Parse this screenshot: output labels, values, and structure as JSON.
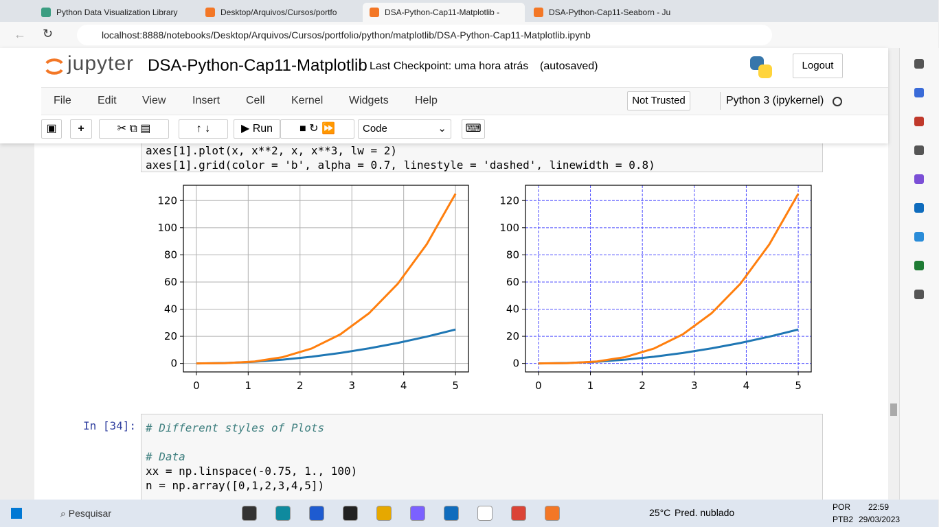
{
  "browser": {
    "tabs": [
      "Python Data Visualization Library",
      "Desktop/Arquivos/Cursos/portfo",
      "DSA-Python-Cap11-Matplotlib -",
      "DSA-Python-Cap11-Seaborn - Ju"
    ],
    "url": "localhost:8888/notebooks/Desktop/Arquivos/Cursos/portfolio/python/matplotlib/DSA-Python-Cap11-Matplotlib.ipynb"
  },
  "header": {
    "logo": "jupyter",
    "title": "DSA-Python-Cap11-Matplotlib",
    "checkpoint": "Last Checkpoint: uma hora atrás",
    "autosaved": "(autosaved)",
    "logout": "Logout"
  },
  "menu": {
    "items": [
      "File",
      "Edit",
      "View",
      "Insert",
      "Cell",
      "Kernel",
      "Widgets",
      "Help"
    ],
    "trust": "Not Trusted",
    "kernel": "Python 3 (ipykernel)"
  },
  "toolbar": {
    "run": "Run",
    "cell_type": "Code"
  },
  "cell1": {
    "lines": [
      "axes[1].plot(x, x**2, x, x**3, lw = 2)",
      "axes[1].grid(color = 'b', alpha = 0.7, linestyle = 'dashed', linewidth = 0.8)"
    ]
  },
  "chart_data": [
    {
      "type": "line",
      "x": [
        0,
        0.5556,
        1.1111,
        1.6667,
        2.2222,
        2.7778,
        3.3333,
        3.8889,
        4.4444,
        5
      ],
      "series": [
        {
          "color": "#1f77b4",
          "values": [
            0,
            0.31,
            1.23,
            2.78,
            4.94,
            7.72,
            11.11,
            15.12,
            19.75,
            25
          ]
        },
        {
          "color": "#ff7f0e",
          "values": [
            0,
            0.17,
            1.37,
            4.63,
            10.97,
            21.43,
            37.04,
            58.81,
            87.79,
            125
          ]
        }
      ],
      "xlim": [
        -0.25,
        5.25
      ],
      "ylim": [
        -6.25,
        131.25
      ],
      "xticks": [
        0,
        1,
        2,
        3,
        4,
        5
      ],
      "yticks": [
        0,
        20,
        40,
        60,
        80,
        100,
        120
      ],
      "grid": true,
      "grid_color": "#b0b0b0",
      "grid_dashed": false
    },
    {
      "type": "line",
      "x": [
        0,
        0.5556,
        1.1111,
        1.6667,
        2.2222,
        2.7778,
        3.3333,
        3.8889,
        4.4444,
        5
      ],
      "series": [
        {
          "color": "#1f77b4",
          "values": [
            0,
            0.31,
            1.23,
            2.78,
            4.94,
            7.72,
            11.11,
            15.12,
            19.75,
            25
          ]
        },
        {
          "color": "#ff7f0e",
          "values": [
            0,
            0.17,
            1.37,
            4.63,
            10.97,
            21.43,
            37.04,
            58.81,
            87.79,
            125
          ]
        }
      ],
      "xlim": [
        -0.25,
        5.25
      ],
      "ylim": [
        -6.25,
        131.25
      ],
      "xticks": [
        0,
        1,
        2,
        3,
        4,
        5
      ],
      "yticks": [
        0,
        20,
        40,
        60,
        80,
        100,
        120
      ],
      "grid": true,
      "grid_color": "#4d4dff",
      "grid_dashed": true
    }
  ],
  "cell2": {
    "prompt": "In [34]:",
    "lines": [
      "# Different styles of Plots",
      "# Data",
      "xx = np.linspace(-0.75, 1., 100)",
      "n = np.array([0,1,2,3,4,5])"
    ]
  },
  "taskbar": {
    "search": "Pesquisar",
    "temp": "25°C",
    "weather": "Pred. nublado",
    "lang": "POR",
    "layout": "PTB2",
    "time": "22:59",
    "date": "29/03/2023"
  }
}
